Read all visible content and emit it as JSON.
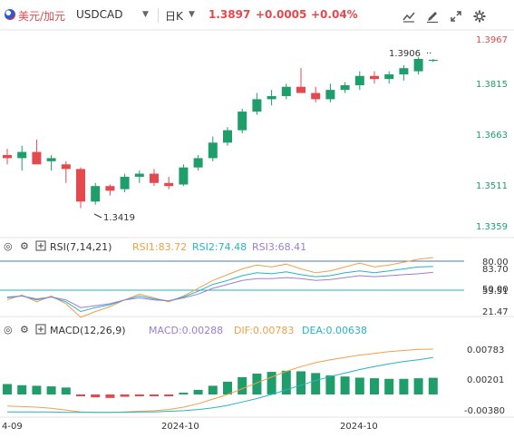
{
  "header": {
    "instrument_name": "美元/加元",
    "instrument_code": "USDCAD",
    "period": "日K",
    "last_price": "1.3897",
    "change": "+0.0005",
    "change_pct": "+0.04%",
    "tools": [
      "candlestick-style-icon",
      "pencil-draw-icon",
      "expand-icon",
      "settings-icon"
    ]
  },
  "colors": {
    "up": "#1f9d6b",
    "down": "#e5484d",
    "rsi1": "#f0a04b",
    "rsi2": "#27b3c9",
    "rsi3": "#9b7fd1",
    "macd_bar": "#1f9d6b",
    "dif": "#f0a04b",
    "dea": "#27b3c9",
    "grid": "#e8e8e8"
  },
  "price_pane": {
    "axis_labels": [
      "1.3967",
      "1.3815",
      "1.3663",
      "1.3511",
      "1.3359"
    ],
    "high_marker": "1.3906",
    "low_marker": "1.3419",
    "last_price_marker": "1.3897"
  },
  "rsi_pane": {
    "title": "RSI(7,14,21)",
    "rsi1_label": "RSI1:83.72",
    "rsi2_label": "RSI2:74.48",
    "rsi3_label": "RSI3:68.41",
    "axis_labels": [
      "80.00",
      "83.70",
      "50.00",
      "53.51",
      "21.47"
    ]
  },
  "macd_pane": {
    "title": "MACD(12,26,9)",
    "macd_label": "MACD:0.00288",
    "dif_label": "DIF:0.00783",
    "dea_label": "DEA:0.00638",
    "axis_labels": [
      "0.00783",
      "0.00201",
      "-0.00380"
    ]
  },
  "x_axis": {
    "labels": [
      "4-09",
      "2024-10",
      "2024-10"
    ]
  },
  "chart_data": {
    "type": "candlestick",
    "price_axis_ticks": [
      1.3967,
      1.3815,
      1.3663,
      1.3511,
      1.3359
    ],
    "candles": [
      {
        "o": 1.359,
        "h": 1.361,
        "l": 1.356,
        "c": 1.358
      },
      {
        "o": 1.358,
        "h": 1.362,
        "l": 1.354,
        "c": 1.36
      },
      {
        "o": 1.36,
        "h": 1.364,
        "l": 1.356,
        "c": 1.356
      },
      {
        "o": 1.357,
        "h": 1.359,
        "l": 1.354,
        "c": 1.358
      },
      {
        "o": 1.356,
        "h": 1.357,
        "l": 1.35,
        "c": 1.3545
      },
      {
        "o": 1.3545,
        "h": 1.355,
        "l": 1.3419,
        "c": 1.344
      },
      {
        "o": 1.344,
        "h": 1.35,
        "l": 1.343,
        "c": 1.349
      },
      {
        "o": 1.349,
        "h": 1.3495,
        "l": 1.346,
        "c": 1.3475
      },
      {
        "o": 1.348,
        "h": 1.353,
        "l": 1.347,
        "c": 1.352
      },
      {
        "o": 1.352,
        "h": 1.354,
        "l": 1.35,
        "c": 1.353
      },
      {
        "o": 1.353,
        "h": 1.3545,
        "l": 1.349,
        "c": 1.35
      },
      {
        "o": 1.35,
        "h": 1.352,
        "l": 1.348,
        "c": 1.349
      },
      {
        "o": 1.3495,
        "h": 1.356,
        "l": 1.349,
        "c": 1.355
      },
      {
        "o": 1.355,
        "h": 1.359,
        "l": 1.354,
        "c": 1.358
      },
      {
        "o": 1.358,
        "h": 1.365,
        "l": 1.357,
        "c": 1.363
      },
      {
        "o": 1.363,
        "h": 1.368,
        "l": 1.362,
        "c": 1.367
      },
      {
        "o": 1.367,
        "h": 1.374,
        "l": 1.366,
        "c": 1.373
      },
      {
        "o": 1.373,
        "h": 1.379,
        "l": 1.372,
        "c": 1.377
      },
      {
        "o": 1.377,
        "h": 1.38,
        "l": 1.375,
        "c": 1.378
      },
      {
        "o": 1.378,
        "h": 1.382,
        "l": 1.377,
        "c": 1.381
      },
      {
        "o": 1.381,
        "h": 1.387,
        "l": 1.379,
        "c": 1.379
      },
      {
        "o": 1.379,
        "h": 1.381,
        "l": 1.376,
        "c": 1.377
      },
      {
        "o": 1.377,
        "h": 1.382,
        "l": 1.376,
        "c": 1.38
      },
      {
        "o": 1.38,
        "h": 1.3825,
        "l": 1.379,
        "c": 1.3815
      },
      {
        "o": 1.3815,
        "h": 1.386,
        "l": 1.38,
        "c": 1.3845
      },
      {
        "o": 1.3845,
        "h": 1.386,
        "l": 1.382,
        "c": 1.3835
      },
      {
        "o": 1.3835,
        "h": 1.386,
        "l": 1.382,
        "c": 1.385
      },
      {
        "o": 1.385,
        "h": 1.388,
        "l": 1.383,
        "c": 1.387
      },
      {
        "o": 1.386,
        "h": 1.3906,
        "l": 1.385,
        "c": 1.39
      },
      {
        "o": 1.3895,
        "h": 1.39,
        "l": 1.389,
        "c": 1.3897
      }
    ],
    "rsi": {
      "rsi1": [
        40,
        45,
        38,
        44,
        36,
        22,
        28,
        33,
        40,
        46,
        42,
        38,
        44,
        52,
        60,
        66,
        72,
        76,
        74,
        77,
        72,
        68,
        70,
        74,
        78,
        74,
        76,
        79,
        82,
        83.72
      ],
      "rsi2": [
        42,
        44,
        40,
        43,
        38,
        28,
        32,
        35,
        40,
        44,
        41,
        39,
        43,
        49,
        56,
        60,
        65,
        68,
        67,
        69,
        66,
        64,
        65,
        68,
        70,
        68,
        70,
        72,
        74,
        74.48
      ],
      "rsi3": [
        43,
        44,
        41,
        43,
        40,
        32,
        34,
        36,
        40,
        42,
        40,
        39,
        42,
        46,
        52,
        56,
        60,
        62,
        62,
        63,
        62,
        60,
        61,
        63,
        65,
        64,
        65,
        66,
        67,
        68.41
      ]
    },
    "macd": {
      "hist": [
        0.0018,
        0.0016,
        0.0015,
        0.0014,
        0.0012,
        -0.0003,
        -0.0005,
        -0.0006,
        -0.0004,
        -0.0003,
        -0.0003,
        -0.0002,
        0.0003,
        0.0008,
        0.0015,
        0.0022,
        0.003,
        0.0036,
        0.0039,
        0.0041,
        0.004,
        0.0037,
        0.0033,
        0.0031,
        0.0029,
        0.0028,
        0.0027,
        0.0027,
        0.0028,
        0.00288
      ],
      "dif": [
        -0.002,
        -0.0021,
        -0.0022,
        -0.0024,
        -0.0027,
        -0.003,
        -0.0031,
        -0.0031,
        -0.003,
        -0.0029,
        -0.0028,
        -0.0026,
        -0.0022,
        -0.0016,
        -0.0008,
        0.0,
        0.001,
        0.002,
        0.003,
        0.004,
        0.0048,
        0.0055,
        0.006,
        0.0064,
        0.0068,
        0.0071,
        0.0074,
        0.0076,
        0.0078,
        0.00783
      ],
      "dea": [
        -0.003,
        -0.003,
        -0.003,
        -0.003,
        -0.0031,
        -0.0031,
        -0.0031,
        -0.0031,
        -0.0031,
        -0.003,
        -0.003,
        -0.0029,
        -0.0028,
        -0.0026,
        -0.0023,
        -0.0019,
        -0.0013,
        -0.0007,
        0.0,
        0.0008,
        0.0016,
        0.0024,
        0.0031,
        0.0037,
        0.0043,
        0.0048,
        0.0053,
        0.0057,
        0.006,
        0.00638
      ]
    },
    "rsi_ylim": [
      0,
      100
    ],
    "macd_ylim": [
      -0.0038,
      0.0092
    ]
  }
}
